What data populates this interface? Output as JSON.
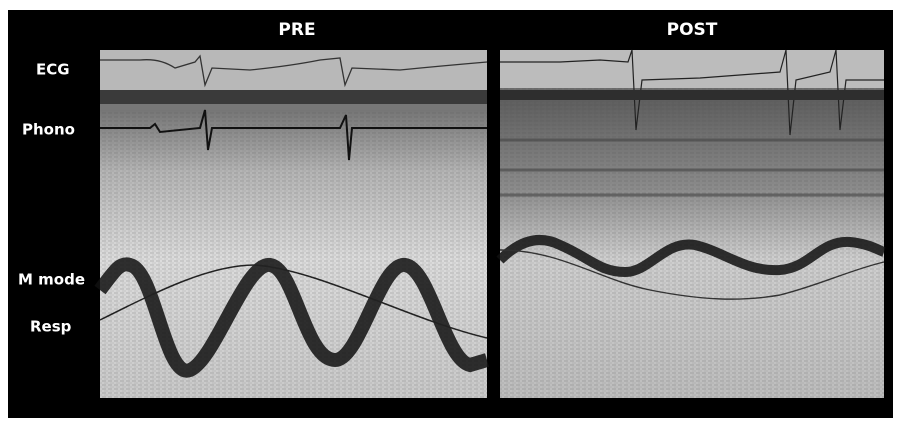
{
  "panels": [
    {
      "title": "PRE"
    },
    {
      "title": "POST"
    }
  ],
  "row_labels": [
    "ECG",
    "Phono",
    "M mode",
    "Resp"
  ]
}
